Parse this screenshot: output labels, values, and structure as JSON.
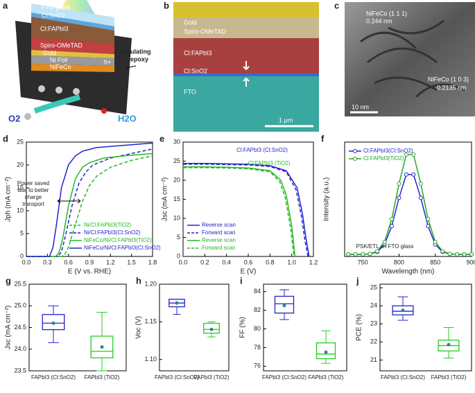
{
  "images": [
    {
      "panel": "a",
      "labels": [
        "FTO glass",
        "Cl:SnO2",
        "Cl:FAPbI3",
        "Spiro-OMeTAD",
        "Gold",
        "Ni Foil",
        "NiFeCo",
        "h+",
        "O2",
        "H2O"
      ],
      "callout": [
        "Insulating",
        "epoxy"
      ]
    },
    {
      "panel": "b",
      "labels": [
        "Gold",
        "Spiro-OMeTAD",
        "Cl:FAPbI3",
        "Cl:SnO2",
        "FTO",
        "1 μm"
      ]
    },
    {
      "panel": "c",
      "labels": [
        "NiFeCo (1 1 1)",
        "0.244 nm",
        "NiFeCo (1 0 3)",
        "0.2135 nm",
        "10 nm"
      ]
    }
  ],
  "chart_data": [
    {
      "type": "line",
      "panel": "d",
      "xlabel": "E (V vs. RHE)",
      "ylabel": "Jph (mA cm⁻²)",
      "xlim": [
        0,
        1.8
      ],
      "xticks": [
        {
          "value": 0,
          "label": "0.0"
        },
        0.3,
        0.6,
        0.9,
        1.2,
        1.5,
        1.8
      ],
      "ylim": [
        0,
        25
      ],
      "yticks": [
        0,
        5,
        10,
        15,
        20,
        25
      ],
      "legend": "lower right",
      "annotations": [
        {
          "lines": [
            "Power saved",
            "due to better",
            "charge",
            "transport"
          ]
        }
      ],
      "series": [
        {
          "name": "Ni/Cl:FAPbI3(TiO2)",
          "color": "#22b822",
          "dash": true,
          "x": [
            0,
            0.5,
            0.55,
            0.6,
            0.7,
            0.8,
            0.9,
            1.0,
            1.2,
            1.5,
            1.8
          ],
          "values": [
            0,
            0,
            0.5,
            2,
            7,
            12,
            15.5,
            17.5,
            19.5,
            21,
            22
          ]
        },
        {
          "name": "Ni/Cl:FAPbI3(Cl:SnO2)",
          "color": "#2222d0",
          "dash": true,
          "x": [
            0,
            0.45,
            0.5,
            0.55,
            0.65,
            0.75,
            0.85,
            0.95,
            1.2,
            1.5,
            1.8
          ],
          "values": [
            0,
            0,
            1,
            4,
            11,
            16,
            18.5,
            20,
            21.5,
            22.5,
            23.5
          ]
        },
        {
          "name": "NiFeCo/Ni/Cl:FAPbI3(TiO2)",
          "color": "#22b822",
          "dash": false,
          "x": [
            0,
            0.42,
            0.47,
            0.52,
            0.6,
            0.7,
            0.8,
            0.9,
            1.1,
            1.4,
            1.8
          ],
          "values": [
            0,
            0,
            1,
            4,
            11,
            17,
            19.5,
            20.5,
            21.5,
            22,
            22.5
          ]
        },
        {
          "name": "NiFeCo/Ni/Cl:FAPbI3(Cl:SnO2)",
          "color": "#2222d0",
          "dash": false,
          "x": [
            0,
            0.33,
            0.38,
            0.43,
            0.5,
            0.6,
            0.7,
            0.8,
            1.0,
            1.4,
            1.8
          ],
          "values": [
            0,
            0,
            2,
            7,
            15,
            20,
            22,
            23,
            23.8,
            24.3,
            24.8
          ]
        }
      ]
    },
    {
      "type": "line",
      "panel": "e",
      "xlabel": "E (V)",
      "ylabel": "Jsc (mA cm⁻²)",
      "xlim": [
        0,
        1.2
      ],
      "xticks": [
        {
          "value": 0,
          "label": "0.0"
        },
        0.2,
        0.4,
        0.6,
        0.8,
        {
          "value": 1,
          "label": "1.0"
        },
        1.2
      ],
      "ylim": [
        0,
        30
      ],
      "yticks": [
        0,
        5,
        10,
        15,
        20,
        25,
        30
      ],
      "legend": "lower left",
      "annotations": [
        {
          "lines": [
            "Cl:FAPbI3 (Cl:SnO2)"
          ],
          "color": "#2222d0"
        },
        {
          "lines": [
            "Cl:FAPbI3 (TiO2)"
          ],
          "color": "#22b822"
        }
      ],
      "series": [
        {
          "name": "Reverse scan",
          "color": "#2222d0",
          "dash": false,
          "x": [
            0,
            0.2,
            0.4,
            0.6,
            0.8,
            0.95,
            1.05,
            1.1,
            1.13,
            1.16
          ],
          "values": [
            24.4,
            24.4,
            24.3,
            24.2,
            23.8,
            22.5,
            18,
            11,
            5,
            0
          ]
        },
        {
          "name": "Forward scan",
          "color": "#2222d0",
          "dash": true,
          "x": [
            0,
            0.2,
            0.4,
            0.6,
            0.8,
            0.95,
            1.04,
            1.09,
            1.12,
            1.15
          ],
          "values": [
            24.2,
            24.2,
            24.1,
            24,
            23.6,
            22.2,
            17.5,
            10.5,
            4.5,
            0
          ]
        },
        {
          "name": "Reverse scan",
          "color": "#22b822",
          "dash": false,
          "x": [
            0,
            0.2,
            0.4,
            0.6,
            0.8,
            0.9,
            0.95,
            1.0,
            1.03
          ],
          "values": [
            23.5,
            23.5,
            23.4,
            23.2,
            22.5,
            20,
            16,
            8,
            0
          ]
        },
        {
          "name": "Forward scan",
          "color": "#22b822",
          "dash": true,
          "x": [
            0,
            0.2,
            0.4,
            0.6,
            0.8,
            0.89,
            0.94,
            0.99,
            1.02
          ],
          "values": [
            23.3,
            23.3,
            23.2,
            23,
            22.2,
            19.6,
            15.5,
            7.5,
            0
          ]
        }
      ]
    },
    {
      "type": "line",
      "panel": "f",
      "xlabel": "Wavelength (nm)",
      "ylabel": "Intensity (a.u.)",
      "xlim": [
        725,
        900
      ],
      "xticks": [
        750,
        800,
        850,
        900
      ],
      "ylim": [
        0,
        1.1
      ],
      "legend": "upper left",
      "annotations": [
        {
          "lines": [
            "PSK/ETL on FTO glass"
          ]
        }
      ],
      "series": [
        {
          "name": "Cl:FAPbI3(Cl:SnO2)",
          "color": "#2222d0",
          "dash": false,
          "marker": "circle",
          "x": [
            730,
            740,
            750,
            760,
            770,
            780,
            790,
            800,
            810,
            820,
            830,
            840,
            850,
            860,
            870,
            880,
            890,
            900
          ],
          "values": [
            0.02,
            0.02,
            0.02,
            0.024,
            0.044,
            0.116,
            0.292,
            0.564,
            0.788,
            0.788,
            0.564,
            0.292,
            0.116,
            0.044,
            0.024,
            0.02,
            0.02,
            0.02
          ]
        },
        {
          "name": "Cl:FAPbI3(TiO2)",
          "color": "#22a822",
          "dash": false,
          "marker": "circle",
          "x": [
            730,
            740,
            750,
            760,
            770,
            780,
            790,
            800,
            810,
            820,
            830,
            840,
            850,
            860,
            870,
            880,
            890,
            900
          ],
          "values": [
            0.02,
            0.02,
            0.02,
            0.025,
            0.05,
            0.14,
            0.36,
            0.7,
            0.98,
            0.98,
            0.7,
            0.36,
            0.14,
            0.05,
            0.025,
            0.02,
            0.02,
            0.02
          ]
        }
      ]
    },
    {
      "type": "box",
      "panel": "g",
      "ylabel": "Jsc (mA cm⁻²)",
      "categories": [
        "FAPbI3 (Cl:SnO2)",
        "FAPbI3 (TiO2)"
      ],
      "colors": [
        "#2222d0",
        "#22cc22"
      ],
      "ylim": [
        23.5,
        25.5
      ],
      "yticks": [
        23.5,
        {
          "value": 24,
          "label": "24.0"
        },
        24.5,
        {
          "value": 25,
          "label": "25.0"
        },
        25.5
      ],
      "boxes": [
        {
          "min": 24.15,
          "q1": 24.45,
          "median": 24.6,
          "q3": 24.8,
          "max": 25.0,
          "mean": 24.6
        },
        {
          "min": 23.5,
          "q1": 23.8,
          "median": 23.95,
          "q3": 24.3,
          "max": 24.85,
          "mean": 24.05
        }
      ]
    },
    {
      "type": "box",
      "panel": "h",
      "ylabel": "Voc (V)",
      "categories": [
        "FAPbI3 (Cl:SnO2)",
        "FAPbI3 (TiO2)"
      ],
      "colors": [
        "#2222d0",
        "#22cc22"
      ],
      "ylim": [
        1.085,
        1.2
      ],
      "yticks": [
        {
          "value": 1.1,
          "label": "1.10"
        },
        1.15,
        {
          "value": 1.2,
          "label": "1.20"
        }
      ],
      "boxes": [
        {
          "min": 1.16,
          "q1": 1.17,
          "median": 1.175,
          "q3": 1.18,
          "max": 1.18,
          "mean": 1.175
        },
        {
          "min": 1.13,
          "q1": 1.135,
          "median": 1.14,
          "q3": 1.148,
          "max": 1.15,
          "mean": 1.14
        }
      ]
    },
    {
      "type": "box",
      "panel": "i",
      "ylabel": "FF (%)",
      "categories": [
        "FAPbI3 (Cl:SnO2)",
        "FAPbI3 (TiO2)"
      ],
      "colors": [
        "#2222d0",
        "#22cc22"
      ],
      "ylim": [
        75.5,
        84.8
      ],
      "yticks": [
        76,
        78,
        80,
        82,
        84
      ],
      "boxes": [
        {
          "min": 81,
          "q1": 81.7,
          "median": 82.7,
          "q3": 83.5,
          "max": 84.2,
          "mean": 82.5
        },
        {
          "min": 76.3,
          "q1": 76.8,
          "median": 77.3,
          "q3": 78.5,
          "max": 79.8,
          "mean": 77.5
        }
      ]
    },
    {
      "type": "box",
      "panel": "j",
      "ylabel": "PCE (%)",
      "categories": [
        "FAPbI3 (Cl:SnO2)",
        "FAPbI3 (TiO2)"
      ],
      "colors": [
        "#2222d0",
        "#22cc22"
      ],
      "ylim": [
        20.4,
        25.2
      ],
      "yticks": [
        21,
        22,
        23,
        24,
        25
      ],
      "boxes": [
        {
          "min": 23.2,
          "q1": 23.5,
          "median": 23.7,
          "q3": 24.0,
          "max": 24.5,
          "mean": 23.75
        },
        {
          "min": 21.1,
          "q1": 21.5,
          "median": 21.8,
          "q3": 22.1,
          "max": 22.8,
          "mean": 21.85
        }
      ]
    }
  ]
}
